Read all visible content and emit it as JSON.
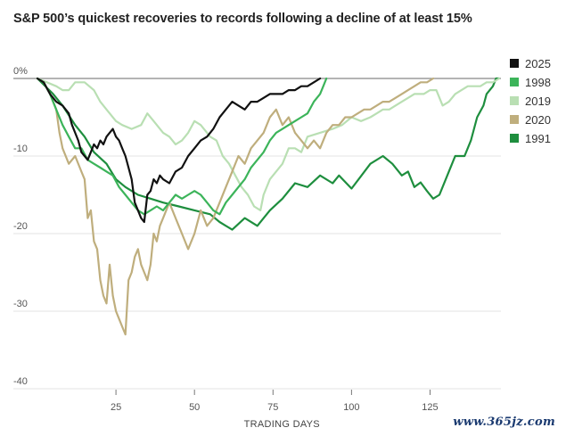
{
  "title": "S&P 500’s quickest recoveries to records following a decline of at least 15%",
  "watermark": "www.365jz.com",
  "chart_data": {
    "type": "line",
    "xlabel": "TRADING DAYS",
    "ylabel": "",
    "xlim": [
      0,
      147
    ],
    "ylim": [
      -40,
      0
    ],
    "x_ticks": [
      25,
      50,
      75,
      100,
      125
    ],
    "y_ticks": [
      {
        "value": 0,
        "label": "0%"
      },
      {
        "value": -10,
        "label": "-10"
      },
      {
        "value": -20,
        "label": "-20"
      },
      {
        "value": -30,
        "label": "-30"
      },
      {
        "value": -40,
        "label": "-40"
      }
    ],
    "grid": true,
    "legend": "right",
    "series": [
      {
        "name": "1991",
        "color": "#1e8e3e",
        "points": [
          [
            0,
            0
          ],
          [
            5,
            -2
          ],
          [
            8,
            -3.5
          ],
          [
            12,
            -6
          ],
          [
            15,
            -7.5
          ],
          [
            18,
            -9.5
          ],
          [
            22,
            -11
          ],
          [
            25,
            -13
          ],
          [
            28,
            -14
          ],
          [
            32,
            -15
          ],
          [
            36,
            -15.5
          ],
          [
            40,
            -16
          ],
          [
            45,
            -16.5
          ],
          [
            50,
            -17
          ],
          [
            55,
            -17.5
          ],
          [
            58,
            -18.5
          ],
          [
            62,
            -19.5
          ],
          [
            66,
            -18
          ],
          [
            70,
            -19
          ],
          [
            74,
            -17
          ],
          [
            78,
            -15.5
          ],
          [
            82,
            -13.5
          ],
          [
            86,
            -14
          ],
          [
            90,
            -12.5
          ],
          [
            94,
            -13.5
          ],
          [
            96,
            -12.5
          ],
          [
            100,
            -14.2
          ],
          [
            103,
            -12.6
          ],
          [
            106,
            -11
          ],
          [
            110,
            -10
          ],
          [
            113,
            -11
          ],
          [
            116,
            -12.5
          ],
          [
            118,
            -12
          ],
          [
            120,
            -14
          ],
          [
            122,
            -13.4
          ],
          [
            124,
            -14.5
          ],
          [
            126,
            -15.5
          ],
          [
            128,
            -15
          ],
          [
            131,
            -12
          ],
          [
            133,
            -10
          ],
          [
            136,
            -10
          ],
          [
            138,
            -8
          ],
          [
            140,
            -5
          ],
          [
            142,
            -3.5
          ],
          [
            143,
            -2
          ],
          [
            145,
            -1
          ],
          [
            146,
            0
          ],
          [
            147,
            0
          ]
        ]
      },
      {
        "name": "2019",
        "color": "#b9dfb3",
        "points": [
          [
            0,
            0
          ],
          [
            3,
            -0.5
          ],
          [
            6,
            -1
          ],
          [
            8,
            -1.5
          ],
          [
            10,
            -1.5
          ],
          [
            12,
            -0.5
          ],
          [
            15,
            -0.5
          ],
          [
            18,
            -1.5
          ],
          [
            20,
            -3
          ],
          [
            22,
            -4
          ],
          [
            25,
            -5.5
          ],
          [
            27,
            -6
          ],
          [
            30,
            -6.5
          ],
          [
            33,
            -6
          ],
          [
            35,
            -4.5
          ],
          [
            37,
            -5.5
          ],
          [
            40,
            -7
          ],
          [
            42,
            -7.5
          ],
          [
            44,
            -8.5
          ],
          [
            46,
            -8
          ],
          [
            48,
            -7
          ],
          [
            50,
            -5.5
          ],
          [
            52,
            -6
          ],
          [
            55,
            -7.5
          ],
          [
            57,
            -8
          ],
          [
            59,
            -10
          ],
          [
            61,
            -11
          ],
          [
            63,
            -12.5
          ],
          [
            65,
            -14
          ],
          [
            67,
            -15
          ],
          [
            69,
            -16.5
          ],
          [
            71,
            -17
          ],
          [
            72,
            -15
          ],
          [
            74,
            -13
          ],
          [
            76,
            -12
          ],
          [
            78,
            -11
          ],
          [
            80,
            -9
          ],
          [
            82,
            -9
          ],
          [
            84,
            -9.5
          ],
          [
            86,
            -7.5
          ],
          [
            90,
            -7
          ],
          [
            94,
            -6.5
          ],
          [
            97,
            -6
          ],
          [
            100,
            -5
          ],
          [
            103,
            -5.5
          ],
          [
            106,
            -5
          ],
          [
            108,
            -4.5
          ],
          [
            110,
            -4
          ],
          [
            112,
            -4
          ],
          [
            114,
            -3.5
          ],
          [
            116,
            -3
          ],
          [
            118,
            -2.5
          ],
          [
            120,
            -2
          ],
          [
            123,
            -2
          ],
          [
            125,
            -1.5
          ],
          [
            127,
            -1.5
          ],
          [
            129,
            -3.5
          ],
          [
            131,
            -3
          ],
          [
            133,
            -2
          ],
          [
            135,
            -1.5
          ],
          [
            137,
            -1
          ],
          [
            139,
            -1
          ],
          [
            141,
            -1
          ],
          [
            143,
            -0.5
          ],
          [
            145,
            -0.5
          ],
          [
            147,
            0
          ]
        ]
      },
      {
        "name": "2020",
        "color": "#bfae7d",
        "points": [
          [
            0,
            0
          ],
          [
            2,
            -0.5
          ],
          [
            4,
            -2
          ],
          [
            6,
            -4
          ],
          [
            7,
            -7
          ],
          [
            8,
            -9
          ],
          [
            9,
            -10
          ],
          [
            10,
            -11
          ],
          [
            12,
            -10
          ],
          [
            14,
            -12
          ],
          [
            15,
            -13
          ],
          [
            16,
            -18
          ],
          [
            17,
            -17
          ],
          [
            18,
            -21
          ],
          [
            19,
            -22
          ],
          [
            20,
            -26
          ],
          [
            21,
            -28
          ],
          [
            22,
            -29
          ],
          [
            23,
            -24
          ],
          [
            24,
            -28
          ],
          [
            25,
            -30
          ],
          [
            26,
            -31
          ],
          [
            27,
            -32
          ],
          [
            28,
            -33
          ],
          [
            29,
            -26
          ],
          [
            30,
            -25
          ],
          [
            31,
            -23
          ],
          [
            32,
            -22
          ],
          [
            33,
            -24
          ],
          [
            34,
            -25
          ],
          [
            35,
            -26
          ],
          [
            36,
            -24
          ],
          [
            37,
            -20
          ],
          [
            38,
            -21
          ],
          [
            39,
            -19
          ],
          [
            40,
            -18
          ],
          [
            42,
            -16
          ],
          [
            44,
            -18
          ],
          [
            46,
            -20
          ],
          [
            48,
            -22
          ],
          [
            50,
            -20
          ],
          [
            52,
            -17
          ],
          [
            54,
            -19
          ],
          [
            56,
            -18
          ],
          [
            58,
            -16
          ],
          [
            60,
            -14
          ],
          [
            62,
            -12
          ],
          [
            64,
            -10
          ],
          [
            66,
            -11
          ],
          [
            68,
            -9
          ],
          [
            70,
            -8
          ],
          [
            72,
            -7
          ],
          [
            74,
            -5
          ],
          [
            76,
            -4
          ],
          [
            78,
            -6
          ],
          [
            80,
            -5
          ],
          [
            82,
            -7
          ],
          [
            84,
            -8
          ],
          [
            86,
            -9
          ],
          [
            88,
            -8
          ],
          [
            90,
            -9
          ],
          [
            92,
            -7
          ],
          [
            94,
            -6
          ],
          [
            96,
            -6
          ],
          [
            98,
            -5
          ],
          [
            100,
            -5
          ],
          [
            102,
            -4.5
          ],
          [
            104,
            -4
          ],
          [
            106,
            -4
          ],
          [
            108,
            -3.5
          ],
          [
            110,
            -3
          ],
          [
            112,
            -3
          ],
          [
            114,
            -2.5
          ],
          [
            116,
            -2
          ],
          [
            118,
            -1.5
          ],
          [
            120,
            -1
          ],
          [
            122,
            -0.5
          ],
          [
            124,
            -0.5
          ],
          [
            126,
            0
          ]
        ]
      },
      {
        "name": "1998",
        "color": "#3cb45a",
        "points": [
          [
            0,
            0
          ],
          [
            2,
            -0.5
          ],
          [
            4,
            -2
          ],
          [
            6,
            -4
          ],
          [
            8,
            -6
          ],
          [
            10,
            -7.5
          ],
          [
            12,
            -9
          ],
          [
            14,
            -9
          ],
          [
            16,
            -10.5
          ],
          [
            18,
            -11
          ],
          [
            20,
            -11.5
          ],
          [
            22,
            -12
          ],
          [
            24,
            -12.5
          ],
          [
            26,
            -14
          ],
          [
            28,
            -15
          ],
          [
            30,
            -16
          ],
          [
            32,
            -17
          ],
          [
            34,
            -17.5
          ],
          [
            36,
            -17
          ],
          [
            38,
            -16.5
          ],
          [
            40,
            -17
          ],
          [
            42,
            -16
          ],
          [
            44,
            -15
          ],
          [
            46,
            -15.5
          ],
          [
            48,
            -15
          ],
          [
            50,
            -14.5
          ],
          [
            52,
            -15
          ],
          [
            54,
            -16
          ],
          [
            56,
            -17
          ],
          [
            58,
            -17.5
          ],
          [
            60,
            -16
          ],
          [
            62,
            -15
          ],
          [
            64,
            -14
          ],
          [
            66,
            -13
          ],
          [
            68,
            -11.5
          ],
          [
            70,
            -10.5
          ],
          [
            72,
            -9.5
          ],
          [
            74,
            -8
          ],
          [
            76,
            -7
          ],
          [
            78,
            -6.5
          ],
          [
            80,
            -6
          ],
          [
            82,
            -5.5
          ],
          [
            84,
            -5
          ],
          [
            86,
            -4.5
          ],
          [
            88,
            -3
          ],
          [
            90,
            -2
          ],
          [
            91,
            -1
          ],
          [
            92,
            0
          ]
        ]
      },
      {
        "name": "2025",
        "color": "#111111",
        "points": [
          [
            0,
            0
          ],
          [
            2,
            -0.5
          ],
          [
            4,
            -2
          ],
          [
            6,
            -3
          ],
          [
            8,
            -3.5
          ],
          [
            10,
            -4.5
          ],
          [
            11,
            -6
          ],
          [
            12,
            -7
          ],
          [
            13,
            -8
          ],
          [
            14,
            -9.5
          ],
          [
            15,
            -10
          ],
          [
            16,
            -10.5
          ],
          [
            17,
            -9.5
          ],
          [
            18,
            -8.5
          ],
          [
            19,
            -9
          ],
          [
            20,
            -8
          ],
          [
            21,
            -8.5
          ],
          [
            22,
            -7.5
          ],
          [
            23,
            -7
          ],
          [
            24,
            -6.5
          ],
          [
            25,
            -7.5
          ],
          [
            26,
            -8
          ],
          [
            27,
            -9
          ],
          [
            28,
            -10
          ],
          [
            29,
            -11.5
          ],
          [
            30,
            -13
          ],
          [
            31,
            -16
          ],
          [
            32,
            -17
          ],
          [
            33,
            -18
          ],
          [
            34,
            -18.5
          ],
          [
            35,
            -15
          ],
          [
            36,
            -14.5
          ],
          [
            37,
            -13
          ],
          [
            38,
            -13.5
          ],
          [
            39,
            -12.5
          ],
          [
            40,
            -13
          ],
          [
            42,
            -13.5
          ],
          [
            44,
            -12
          ],
          [
            46,
            -11.5
          ],
          [
            48,
            -10
          ],
          [
            50,
            -9
          ],
          [
            52,
            -8
          ],
          [
            54,
            -7.5
          ],
          [
            56,
            -6.5
          ],
          [
            58,
            -5
          ],
          [
            60,
            -4
          ],
          [
            62,
            -3
          ],
          [
            64,
            -3.5
          ],
          [
            66,
            -4
          ],
          [
            68,
            -3
          ],
          [
            70,
            -3
          ],
          [
            72,
            -2.5
          ],
          [
            74,
            -2
          ],
          [
            76,
            -2
          ],
          [
            78,
            -2
          ],
          [
            80,
            -1.5
          ],
          [
            82,
            -1.5
          ],
          [
            84,
            -1
          ],
          [
            86,
            -1
          ],
          [
            88,
            -0.5
          ],
          [
            90,
            0
          ]
        ]
      }
    ]
  }
}
